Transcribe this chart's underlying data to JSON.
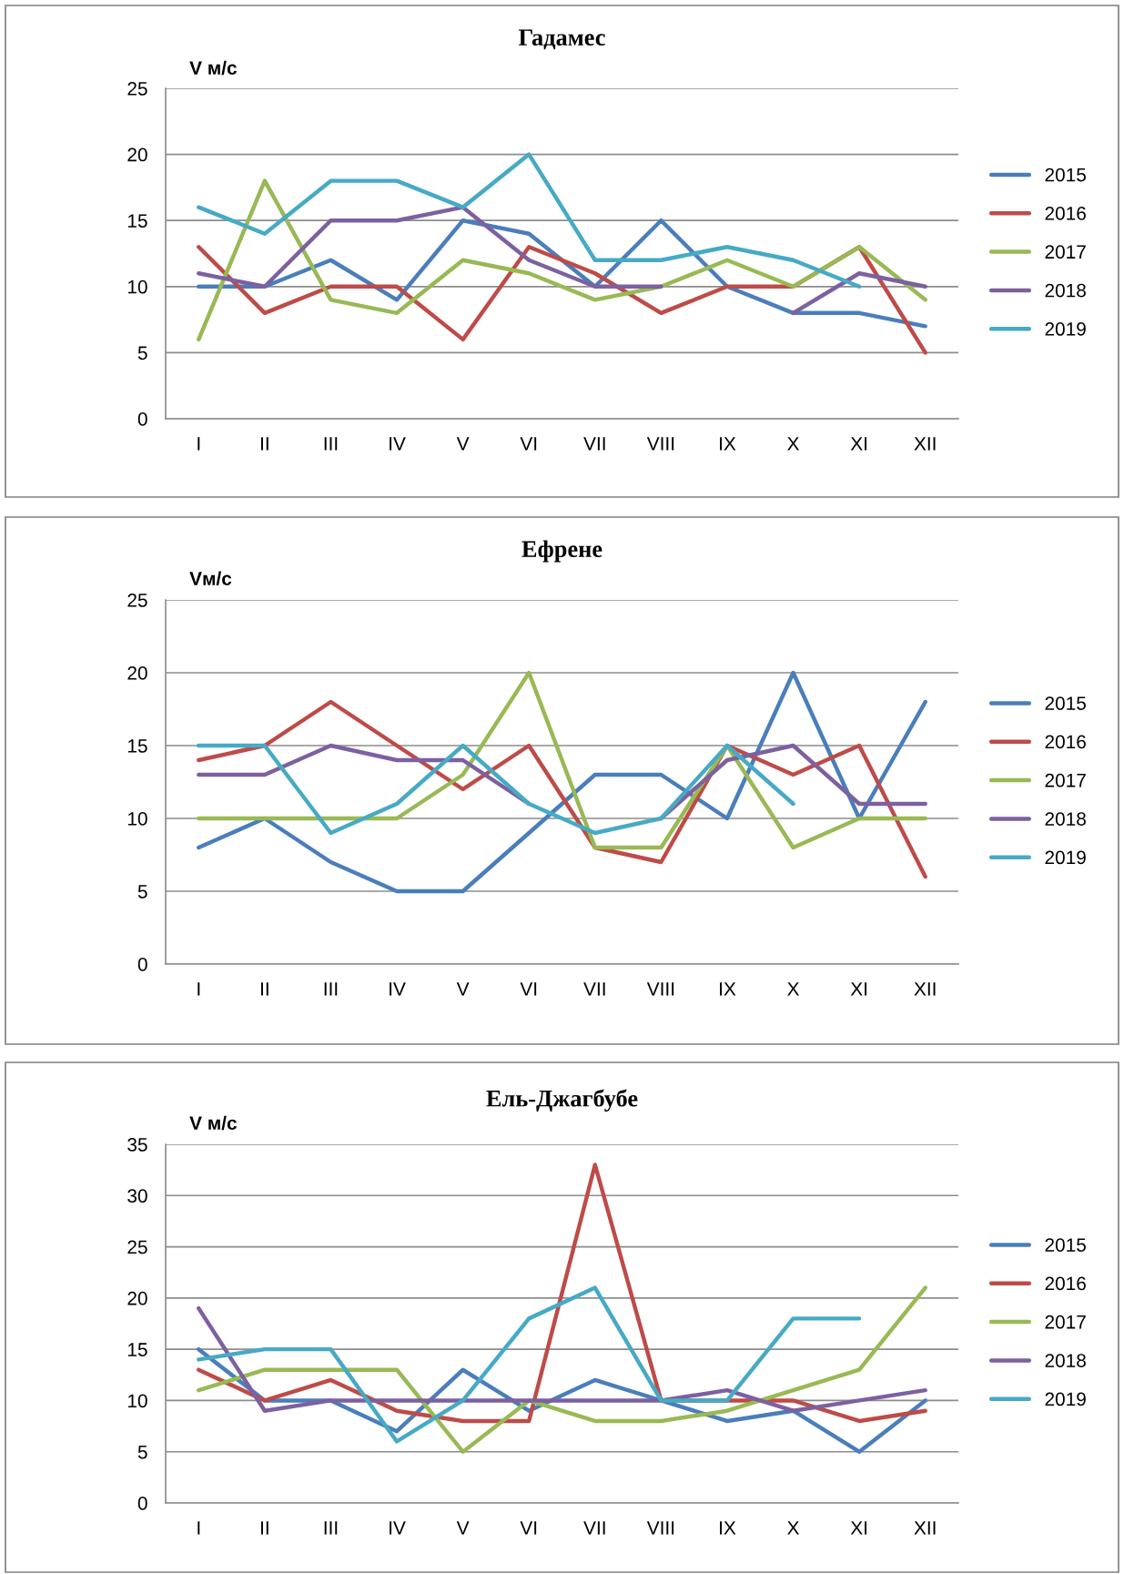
{
  "chart_data": [
    {
      "type": "line",
      "title": "Гадамес",
      "ylabel": "V м/с",
      "categories": [
        "I",
        "II",
        "III",
        "IV",
        "V",
        "VI",
        "VII",
        "VIII",
        "IX",
        "X",
        "XI",
        "XII"
      ],
      "ylim": [
        0,
        25
      ],
      "yticks": [
        0,
        5,
        10,
        15,
        20,
        25
      ],
      "grid": "y",
      "legend": "right",
      "marker": "none",
      "series": [
        {
          "name": "2015",
          "color": "#4a7ebb",
          "values": [
            10,
            10,
            12,
            9,
            15,
            14,
            10,
            15,
            10,
            8,
            8,
            7
          ]
        },
        {
          "name": "2016",
          "color": "#be4b48",
          "values": [
            13,
            8,
            10,
            10,
            6,
            13,
            11,
            8,
            10,
            10,
            13,
            5
          ]
        },
        {
          "name": "2017",
          "color": "#98b954",
          "values": [
            6,
            18,
            9,
            8,
            12,
            11,
            9,
            10,
            12,
            10,
            13,
            9
          ]
        },
        {
          "name": "2018",
          "color": "#7d60a0",
          "values": [
            11,
            10,
            15,
            15,
            16,
            12,
            10,
            10,
            null,
            8,
            11,
            10
          ]
        },
        {
          "name": "2019",
          "color": "#46aac5",
          "values": [
            16,
            14,
            18,
            18,
            16,
            20,
            12,
            12,
            13,
            12,
            10,
            null
          ]
        }
      ]
    },
    {
      "type": "line",
      "title": "Ефрене",
      "ylabel": "Vм/с",
      "categories": [
        "I",
        "II",
        "III",
        "IV",
        "V",
        "VI",
        "VII",
        "VIII",
        "IX",
        "X",
        "XI",
        "XII"
      ],
      "ylim": [
        0,
        25
      ],
      "yticks": [
        0,
        5,
        10,
        15,
        20,
        25
      ],
      "grid": "y",
      "legend": "right",
      "marker": "none",
      "series": [
        {
          "name": "2015",
          "color": "#4a7ebb",
          "values": [
            8,
            10,
            7,
            5,
            5,
            9,
            13,
            13,
            10,
            20,
            10,
            18
          ]
        },
        {
          "name": "2016",
          "color": "#be4b48",
          "values": [
            14,
            15,
            18,
            15,
            12,
            15,
            8,
            7,
            15,
            13,
            15,
            6
          ]
        },
        {
          "name": "2017",
          "color": "#98b954",
          "values": [
            10,
            10,
            10,
            10,
            13,
            20,
            8,
            8,
            15,
            8,
            10,
            10
          ]
        },
        {
          "name": "2018",
          "color": "#7d60a0",
          "values": [
            13,
            13,
            15,
            14,
            14,
            11,
            null,
            10,
            14,
            15,
            11,
            11
          ]
        },
        {
          "name": "2019",
          "color": "#46aac5",
          "values": [
            15,
            15,
            9,
            11,
            15,
            11,
            9,
            10,
            15,
            11,
            null,
            null
          ]
        }
      ]
    },
    {
      "type": "line",
      "title": "Ель-Джагбубе",
      "ylabel": "V м/с",
      "categories": [
        "I",
        "II",
        "III",
        "IV",
        "V",
        "VI",
        "VII",
        "VIII",
        "IX",
        "X",
        "XI",
        "XII"
      ],
      "ylim": [
        0,
        35
      ],
      "yticks": [
        0,
        5,
        10,
        15,
        20,
        25,
        30,
        35
      ],
      "grid": "y",
      "legend": "right",
      "marker": "none",
      "series": [
        {
          "name": "2015",
          "color": "#4a7ebb",
          "values": [
            15,
            10,
            10,
            7,
            13,
            9,
            12,
            10,
            8,
            9,
            5,
            10
          ]
        },
        {
          "name": "2016",
          "color": "#be4b48",
          "values": [
            13,
            10,
            12,
            9,
            8,
            8,
            33,
            10,
            10,
            10,
            8,
            9
          ]
        },
        {
          "name": "2017",
          "color": "#98b954",
          "values": [
            11,
            13,
            13,
            13,
            5,
            10,
            8,
            8,
            9,
            11,
            13,
            21
          ]
        },
        {
          "name": "2018",
          "color": "#7d60a0",
          "values": [
            19,
            9,
            10,
            10,
            10,
            10,
            10,
            10,
            11,
            9,
            10,
            11
          ]
        },
        {
          "name": "2019",
          "color": "#46aac5",
          "values": [
            14,
            15,
            15,
            6,
            10,
            18,
            21,
            10,
            10,
            18,
            18,
            null
          ]
        }
      ]
    }
  ]
}
